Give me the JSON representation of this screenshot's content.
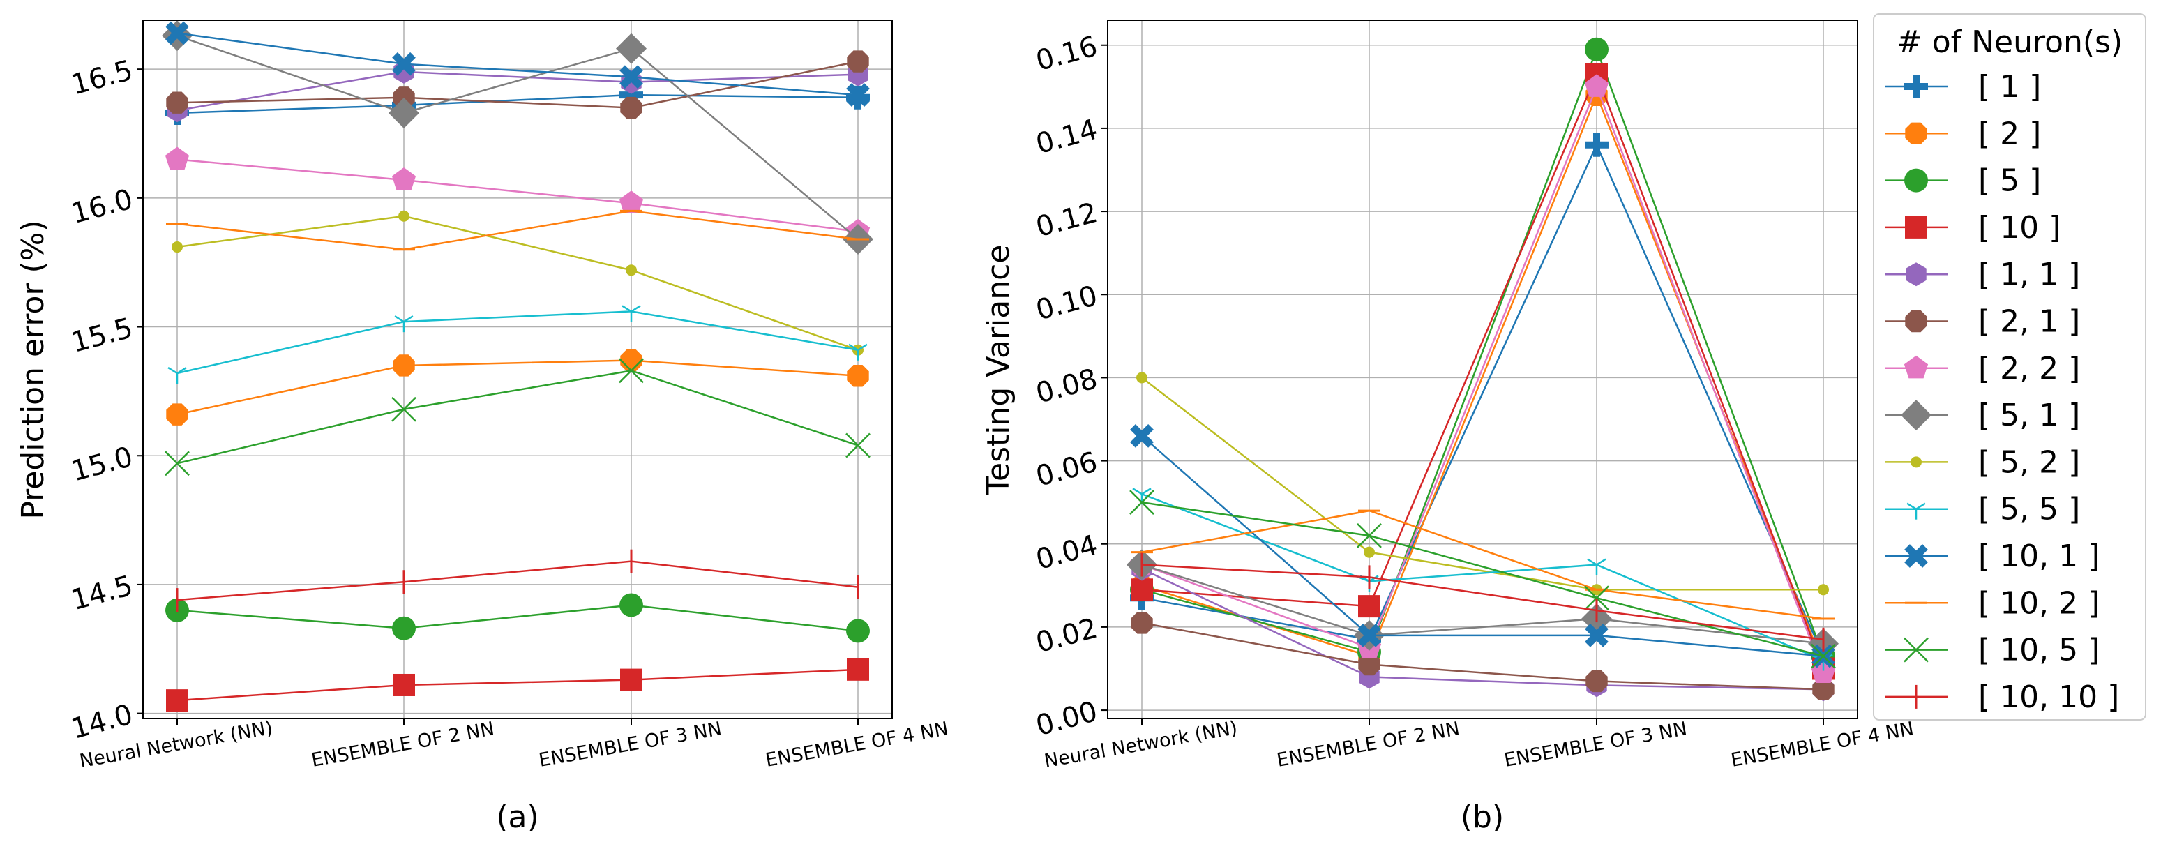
{
  "chart_data": [
    {
      "type": "line",
      "panel_label": "(a)",
      "xlabel": "",
      "ylabel": "Prediction error (%)",
      "categories": [
        "Neural Network (NN)",
        "ENSEMBLE OF 2 NN",
        "ENSEMBLE OF 3 NN",
        "ENSEMBLE OF 4 NN"
      ],
      "ylim": [
        13.98,
        16.69
      ],
      "yticks": [
        14.0,
        14.5,
        15.0,
        15.5,
        16.0,
        16.5
      ],
      "ytick_labels": [
        "14.0",
        "14.5",
        "15.0",
        "15.5",
        "16.0",
        "16.5"
      ],
      "grid": true,
      "series": [
        {
          "name": "[ 1 ]",
          "values": [
            16.33,
            16.36,
            16.4,
            16.39
          ]
        },
        {
          "name": "[ 2 ]",
          "values": [
            15.16,
            15.35,
            15.37,
            15.31
          ]
        },
        {
          "name": "[ 5 ]",
          "values": [
            14.4,
            14.33,
            14.42,
            14.32
          ]
        },
        {
          "name": "[ 10 ]",
          "values": [
            14.05,
            14.11,
            14.13,
            14.17
          ]
        },
        {
          "name": "[ 1, 1 ]",
          "values": [
            16.34,
            16.49,
            16.45,
            16.48
          ]
        },
        {
          "name": "[ 2, 1 ]",
          "values": [
            16.37,
            16.39,
            16.35,
            16.53
          ]
        },
        {
          "name": "[ 2, 2 ]",
          "values": [
            16.15,
            16.07,
            15.98,
            15.87
          ]
        },
        {
          "name": "[ 5, 1 ]",
          "values": [
            16.63,
            16.33,
            16.58,
            15.84
          ]
        },
        {
          "name": "[ 5, 2 ]",
          "values": [
            15.81,
            15.93,
            15.72,
            15.41
          ]
        },
        {
          "name": "[ 5, 5 ]",
          "values": [
            15.32,
            15.52,
            15.56,
            15.41
          ]
        },
        {
          "name": "[ 10, 1 ]",
          "values": [
            16.64,
            16.52,
            16.47,
            16.4
          ]
        },
        {
          "name": "[ 10, 2 ]",
          "values": [
            15.9,
            15.8,
            15.95,
            15.84
          ]
        },
        {
          "name": "[ 10, 5 ]",
          "values": [
            14.97,
            15.18,
            15.33,
            15.04
          ]
        },
        {
          "name": "[ 10, 10 ]",
          "values": [
            14.44,
            14.51,
            14.59,
            14.49
          ]
        }
      ]
    },
    {
      "type": "line",
      "panel_label": "(b)",
      "xlabel": "",
      "ylabel": "Testing Variance",
      "categories": [
        "Neural Network (NN)",
        "ENSEMBLE OF 2 NN",
        "ENSEMBLE OF 3 NN",
        "ENSEMBLE OF 4 NN"
      ],
      "ylim": [
        -0.002,
        0.166
      ],
      "yticks": [
        0.0,
        0.02,
        0.04,
        0.06,
        0.08,
        0.1,
        0.12,
        0.14,
        0.16
      ],
      "ytick_labels": [
        "0.00",
        "0.02",
        "0.04",
        "0.06",
        "0.08",
        "0.10",
        "0.12",
        "0.14",
        "0.16"
      ],
      "grid": true,
      "series": [
        {
          "name": "[ 1 ]",
          "values": [
            0.027,
            0.017,
            0.136,
            0.013
          ]
        },
        {
          "name": "[ 2 ]",
          "values": [
            0.03,
            0.013,
            0.148,
            0.011
          ]
        },
        {
          "name": "[ 5 ]",
          "values": [
            0.029,
            0.014,
            0.159,
            0.013
          ]
        },
        {
          "name": "[ 10 ]",
          "values": [
            0.029,
            0.025,
            0.153,
            0.01
          ]
        },
        {
          "name": "[ 1, 1 ]",
          "values": [
            0.034,
            0.008,
            0.006,
            0.005
          ]
        },
        {
          "name": "[ 2, 1 ]",
          "values": [
            0.021,
            0.011,
            0.007,
            0.005
          ]
        },
        {
          "name": "[ 2, 2 ]",
          "values": [
            0.035,
            0.015,
            0.15,
            0.009
          ]
        },
        {
          "name": "[ 5, 1 ]",
          "values": [
            0.035,
            0.018,
            0.022,
            0.016
          ]
        },
        {
          "name": "[ 5, 2 ]",
          "values": [
            0.08,
            0.038,
            0.029,
            0.029
          ]
        },
        {
          "name": "[ 5, 5 ]",
          "values": [
            0.052,
            0.031,
            0.035,
            0.012
          ]
        },
        {
          "name": "[ 10, 1 ]",
          "values": [
            0.066,
            0.018,
            0.018,
            0.013
          ]
        },
        {
          "name": "[ 10, 2 ]",
          "values": [
            0.038,
            0.048,
            0.029,
            0.022
          ]
        },
        {
          "name": "[ 10, 5 ]",
          "values": [
            0.05,
            0.042,
            0.027,
            0.013
          ]
        },
        {
          "name": "[ 10, 10 ]",
          "values": [
            0.035,
            0.032,
            0.024,
            0.017
          ]
        }
      ]
    }
  ],
  "legend": {
    "title": "# of Neuron(s)",
    "placement": "outside-right",
    "entries": [
      {
        "label": "[ 1 ]",
        "color": "#1f77b4",
        "marker": "plus"
      },
      {
        "label": "[ 2 ]",
        "color": "#ff7f0e",
        "marker": "octagon"
      },
      {
        "label": "[ 5 ]",
        "color": "#2ca02c",
        "marker": "circle"
      },
      {
        "label": "[ 10 ]",
        "color": "#d62728",
        "marker": "square"
      },
      {
        "label": "[ 1, 1 ]",
        "color": "#9467bd",
        "marker": "hexagon"
      },
      {
        "label": "[ 2, 1 ]",
        "color": "#8c564b",
        "marker": "octagon"
      },
      {
        "label": "[ 2, 2 ]",
        "color": "#e377c2",
        "marker": "pentagon"
      },
      {
        "label": "[ 5, 1 ]",
        "color": "#7f7f7f",
        "marker": "diamond"
      },
      {
        "label": "[ 5, 2 ]",
        "color": "#bcbd22",
        "marker": "point"
      },
      {
        "label": "[ 5, 5 ]",
        "color": "#17becf",
        "marker": "tri-down"
      },
      {
        "label": "[ 10, 1 ]",
        "color": "#1f77b4",
        "marker": "x-filled"
      },
      {
        "label": "[ 10, 2 ]",
        "color": "#ff7f0e",
        "marker": "hline"
      },
      {
        "label": "[ 10, 5 ]",
        "color": "#2ca02c",
        "marker": "x"
      },
      {
        "label": "[ 10, 10 ]",
        "color": "#d62728",
        "marker": "vline"
      }
    ]
  }
}
